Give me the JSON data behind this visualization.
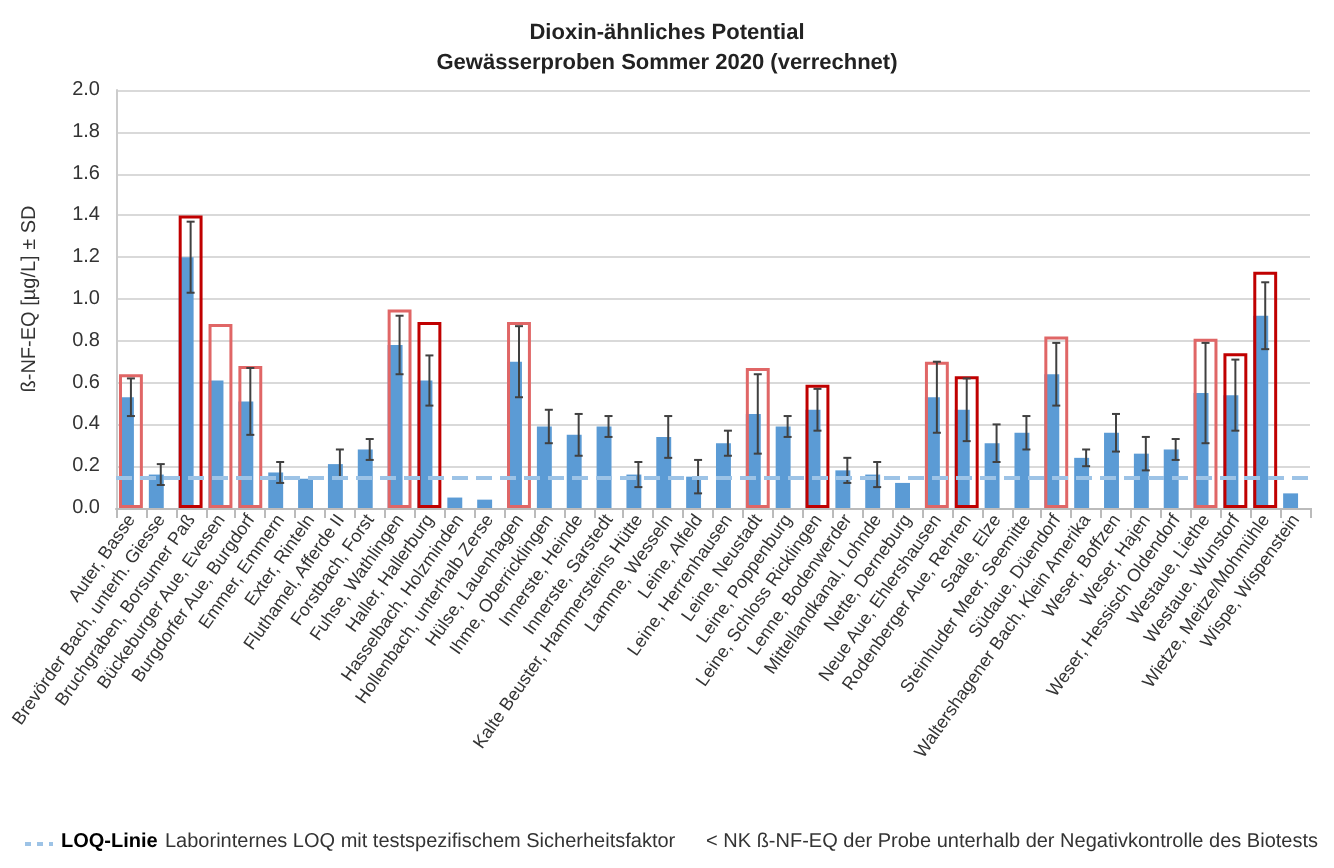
{
  "chart_data": {
    "type": "bar",
    "title": "Dioxin-ähnliches Potential\nGewässerproben Sommer 2020 (verrechnet)",
    "ylabel": "ß-NF-EQ [µg/L] ± SD",
    "categories": [
      "Auter, Basse",
      "Brevörder Bach, unterh. Giesse",
      "Bruchgraben, Borsumer Paß",
      "Bückeburger Aue, Evesen",
      "Burgdorfer Aue, Burgdorf",
      "Emmer, Emmern",
      "Exter, Rinteln",
      "Fluthamel, Afferde II",
      "Forstbach, Forst",
      "Fuhse, Wathlingen",
      "Haller, Hallerburg",
      "Hasselbach, Holzminden",
      "Hollenbach, unterhalb Zerse",
      "Hülse, Lauenhagen",
      "Ihme, Oberricklingen",
      "Innerste, Heinde",
      "Innerste, Sarstedt",
      "Kalte Beuster, Hammersteins Hütte",
      "Lamme, Wesseln",
      "Leine, Alfeld",
      "Leine, Herrenhausen",
      "Leine, Neustadt",
      "Leine, Poppenburg",
      "Leine, Schloss Ricklingen",
      "Lenne, Bodenwerder",
      "Mittellandkanal, Lohnde",
      "Nette, Derneburg",
      "Neue Aue, Ehlershausen",
      "Rodenberger Aue, Rehren",
      "Saale, Elze",
      "Steinhuder Meer, Seemitte",
      "Südaue, Düendorf",
      "Waltershagener Bach, Klein Amerika",
      "Weser, Boffzen",
      "Weser, Hajen",
      "Weser, Hessisch Oldendorf",
      "Westaue, Liethe",
      "Westaue, Wunstorf",
      "Wietze, Meitze/Mohmühle",
      "Wispe, Wispenstein"
    ],
    "series": [
      {
        "color": "#5b9bd5",
        "values": [
          0.53,
          0.16,
          1.2,
          0.61,
          0.51,
          0.17,
          0.14,
          0.21,
          0.28,
          0.78,
          0.61,
          0.05,
          0.04,
          0.7,
          0.39,
          0.35,
          0.39,
          0.16,
          0.34,
          0.15,
          0.31,
          0.45,
          0.39,
          0.47,
          0.18,
          0.16,
          0.12,
          0.53,
          0.47,
          0.31,
          0.36,
          0.64,
          0.24,
          0.36,
          0.26,
          0.28,
          0.55,
          0.54,
          0.92,
          0.07
        ],
        "errors": [
          0.09,
          0.05,
          0.17,
          null,
          0.16,
          0.05,
          null,
          0.07,
          0.05,
          0.14,
          0.12,
          null,
          null,
          0.17,
          0.08,
          0.1,
          0.05,
          0.06,
          0.1,
          0.08,
          0.06,
          0.19,
          0.05,
          0.1,
          0.06,
          0.06,
          null,
          0.17,
          0.15,
          0.09,
          0.08,
          0.15,
          0.04,
          0.09,
          0.08,
          0.05,
          0.24,
          0.17,
          0.16,
          null
        ]
      },
      {
        "color": "#c00000",
        "values": [
          0.64,
          null,
          1.4,
          0.88,
          0.68,
          null,
          null,
          null,
          null,
          0.95,
          0.89,
          null,
          null,
          0.89,
          null,
          null,
          null,
          null,
          null,
          null,
          null,
          0.67,
          null,
          0.59,
          null,
          null,
          null,
          0.7,
          0.63,
          null,
          null,
          0.82,
          null,
          null,
          null,
          null,
          0.81,
          0.74,
          1.13,
          null
        ],
        "colors": [
          "#e06666",
          null,
          "#c00000",
          "#e06666",
          "#e06666",
          null,
          null,
          null,
          null,
          "#e06666",
          "#c00000",
          null,
          null,
          "#e06666",
          null,
          null,
          null,
          null,
          null,
          null,
          null,
          "#e06666",
          null,
          "#c00000",
          null,
          null,
          null,
          "#e06666",
          "#c00000",
          null,
          null,
          "#e06666",
          null,
          null,
          null,
          null,
          "#e06666",
          "#c00000",
          "#c00000",
          null
        ]
      }
    ],
    "ylim": [
      0,
      2
    ],
    "yticks": [
      {
        "value": 0,
        "label": "0.0"
      },
      {
        "value": 0.2,
        "label": "0.2"
      },
      {
        "value": 0.4,
        "label": "0.4"
      },
      {
        "value": 0.6,
        "label": "0.6"
      },
      {
        "value": 0.8,
        "label": "0.8"
      },
      {
        "value": 1,
        "label": "1.0"
      },
      {
        "value": 1.2,
        "label": "1.2"
      },
      {
        "value": 1.4,
        "label": "1.4"
      },
      {
        "value": 1.6,
        "label": "1.6"
      },
      {
        "value": 1.8,
        "label": "1.8"
      },
      {
        "value": 2,
        "label": "2.0"
      }
    ],
    "grid": "y",
    "ref_lines": [
      {
        "axis": "y",
        "value": 0.15,
        "label": "LOQ-Linie",
        "color": "#9dc3e6",
        "line_style": "dashed"
      }
    ],
    "annotations": [
      "Laborinternes LOQ mit testspezifischem Sicherheitsfaktor",
      "< NK ß-NF-EQ der Probe unterhalb der Negativkontrolle des Biotests"
    ]
  }
}
